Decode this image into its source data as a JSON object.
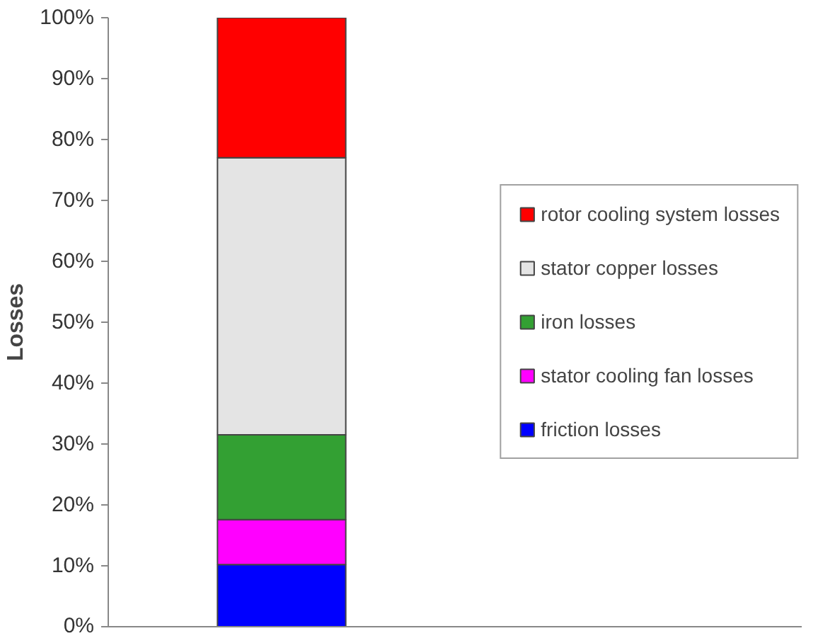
{
  "chart_data": {
    "type": "bar",
    "stacked": true,
    "ylabel": "Losses",
    "categories": [
      null
    ],
    "series": [
      {
        "name": "friction losses",
        "color": "#0000ff",
        "values": [
          10.2
        ]
      },
      {
        "name": "stator cooling fan losses",
        "color": "#ff00ff",
        "values": [
          7.4
        ]
      },
      {
        "name": "iron losses",
        "color": "#33a033",
        "values": [
          13.9
        ]
      },
      {
        "name": "stator copper losses",
        "color": "#e4e4e4",
        "values": [
          45.5
        ]
      },
      {
        "name": "rotor cooling system losses",
        "color": "#ff0000",
        "values": [
          23.0
        ]
      }
    ],
    "ylim": [
      0,
      100
    ],
    "yticks": [
      {
        "value": 0,
        "label": "0%"
      },
      {
        "value": 10,
        "label": "10%"
      },
      {
        "value": 20,
        "label": "20%"
      },
      {
        "value": 30,
        "label": "30%"
      },
      {
        "value": 40,
        "label": "40%"
      },
      {
        "value": 50,
        "label": "50%"
      },
      {
        "value": 60,
        "label": "60%"
      },
      {
        "value": 70,
        "label": "70%"
      },
      {
        "value": 80,
        "label": "80%"
      },
      {
        "value": 90,
        "label": "90%"
      },
      {
        "value": 100,
        "label": "100%"
      }
    ],
    "legend": "right"
  }
}
